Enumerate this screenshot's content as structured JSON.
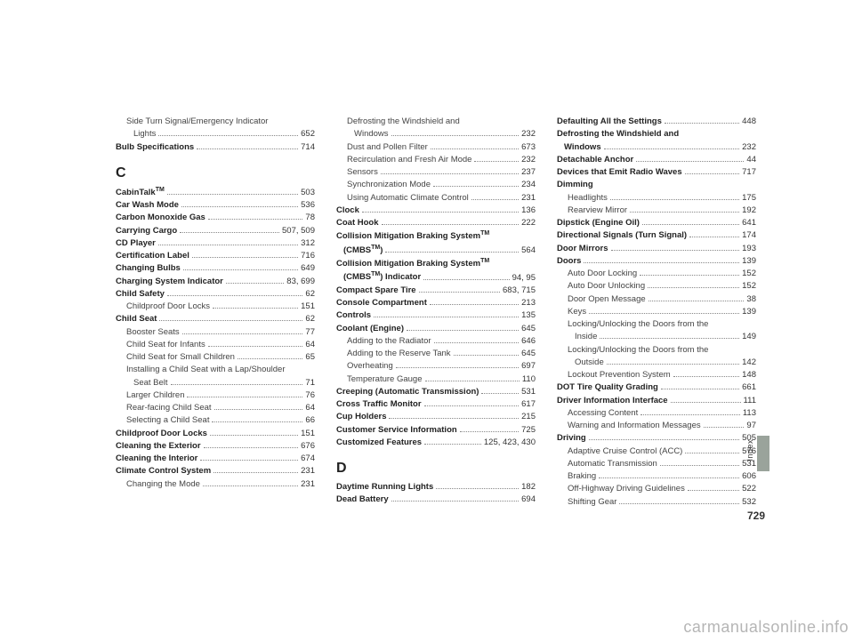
{
  "pageNumber": "729",
  "sideLabel": "Index",
  "watermark": "carmanualsonline.info",
  "columns": [
    {
      "entries": [
        {
          "label": "Side Turn Signal/Emergency Indicator",
          "pg": "",
          "type": "sub",
          "nodots": true
        },
        {
          "label": "Lights",
          "pg": "652",
          "type": "cont"
        },
        {
          "label": "Bulb Specifications",
          "pg": "714",
          "type": "bold"
        },
        {
          "label": "C",
          "type": "letter"
        },
        {
          "label": "CabinTalk",
          "tm": "TM",
          "pg": "503",
          "type": "bold"
        },
        {
          "label": "Car Wash Mode",
          "pg": "536",
          "type": "bold"
        },
        {
          "label": "Carbon Monoxide Gas",
          "pg": "78",
          "type": "bold"
        },
        {
          "label": "Carrying Cargo",
          "pg": "507, 509",
          "type": "bold"
        },
        {
          "label": "CD Player",
          "pg": "312",
          "type": "bold"
        },
        {
          "label": "Certification Label",
          "pg": "716",
          "type": "bold"
        },
        {
          "label": "Changing Bulbs",
          "pg": "649",
          "type": "bold"
        },
        {
          "label": "Charging System Indicator",
          "pg": "83, 699",
          "type": "bold"
        },
        {
          "label": "Child Safety",
          "pg": "62",
          "type": "bold"
        },
        {
          "label": "Childproof Door Locks",
          "pg": "151",
          "type": "sub"
        },
        {
          "label": "Child Seat",
          "pg": "62",
          "type": "bold"
        },
        {
          "label": "Booster Seats",
          "pg": "77",
          "type": "sub"
        },
        {
          "label": "Child Seat for Infants",
          "pg": "64",
          "type": "sub"
        },
        {
          "label": "Child Seat for Small Children",
          "pg": "65",
          "type": "sub"
        },
        {
          "label": "Installing a Child Seat with a Lap/Shoulder",
          "pg": "",
          "type": "sub",
          "nodots": true
        },
        {
          "label": "Seat Belt",
          "pg": "71",
          "type": "cont"
        },
        {
          "label": "Larger Children",
          "pg": "76",
          "type": "sub"
        },
        {
          "label": "Rear-facing Child Seat",
          "pg": "64",
          "type": "sub"
        },
        {
          "label": "Selecting a Child Seat",
          "pg": "66",
          "type": "sub"
        },
        {
          "label": "Childproof Door Locks",
          "pg": "151",
          "type": "bold"
        },
        {
          "label": "Cleaning the Exterior",
          "pg": "676",
          "type": "bold"
        },
        {
          "label": "Cleaning the Interior",
          "pg": "674",
          "type": "bold"
        },
        {
          "label": "Climate Control System",
          "pg": "231",
          "type": "bold"
        },
        {
          "label": "Changing the Mode",
          "pg": "231",
          "type": "sub"
        }
      ]
    },
    {
      "entries": [
        {
          "label": "Defrosting the Windshield and",
          "pg": "",
          "type": "sub",
          "nodots": true
        },
        {
          "label": "Windows",
          "pg": "232",
          "type": "cont"
        },
        {
          "label": "Dust and Pollen Filter",
          "pg": "673",
          "type": "sub"
        },
        {
          "label": "Recirculation and Fresh Air Mode",
          "pg": "232",
          "type": "sub"
        },
        {
          "label": "Sensors",
          "pg": "237",
          "type": "sub"
        },
        {
          "label": "Synchronization Mode",
          "pg": "234",
          "type": "sub"
        },
        {
          "label": "Using Automatic Climate Control",
          "pg": "231",
          "type": "sub"
        },
        {
          "label": "Clock",
          "pg": "136",
          "type": "bold"
        },
        {
          "label": "Coat Hook",
          "pg": "222",
          "type": "bold"
        },
        {
          "label": "Collision Mitigation Braking System",
          "tm": "TM",
          "pg": "",
          "type": "bold",
          "nodots": true
        },
        {
          "label": "(CMBS",
          "tm": "TM",
          "suffix": ")",
          "pg": "564",
          "type": "boldcont"
        },
        {
          "label": "Collision Mitigation Braking System",
          "tm": "TM",
          "pg": "",
          "type": "bold",
          "nodots": true
        },
        {
          "label": "(CMBS",
          "tm": "TM",
          "suffix": ") Indicator",
          "pg": "94, 95",
          "type": "boldcont"
        },
        {
          "label": "Compact Spare Tire",
          "pg": "683, 715",
          "type": "bold"
        },
        {
          "label": "Console Compartment",
          "pg": "213",
          "type": "bold"
        },
        {
          "label": "Controls",
          "pg": "135",
          "type": "bold"
        },
        {
          "label": "Coolant (Engine)",
          "pg": "645",
          "type": "bold"
        },
        {
          "label": "Adding to the Radiator",
          "pg": "646",
          "type": "sub"
        },
        {
          "label": "Adding to the Reserve Tank",
          "pg": "645",
          "type": "sub"
        },
        {
          "label": "Overheating",
          "pg": "697",
          "type": "sub"
        },
        {
          "label": "Temperature Gauge",
          "pg": "110",
          "type": "sub"
        },
        {
          "label": "Creeping (Automatic Transmission)",
          "pg": "531",
          "type": "bold"
        },
        {
          "label": "Cross Traffic Monitor",
          "pg": "617",
          "type": "bold"
        },
        {
          "label": "Cup Holders",
          "pg": "215",
          "type": "bold"
        },
        {
          "label": "Customer Service Information",
          "pg": "725",
          "type": "bold"
        },
        {
          "label": "Customized Features",
          "pg": "125, 423, 430",
          "type": "bold"
        },
        {
          "label": "D",
          "type": "letter"
        },
        {
          "label": "Daytime Running Lights",
          "pg": "182",
          "type": "bold"
        },
        {
          "label": "Dead Battery",
          "pg": "694",
          "type": "bold"
        }
      ]
    },
    {
      "entries": [
        {
          "label": "Defaulting All the Settings",
          "pg": "448",
          "type": "bold"
        },
        {
          "label": "Defrosting the Windshield and",
          "pg": "",
          "type": "bold",
          "nodots": true
        },
        {
          "label": "Windows",
          "pg": "232",
          "type": "boldcont"
        },
        {
          "label": "Detachable Anchor",
          "pg": "44",
          "type": "bold"
        },
        {
          "label": "Devices that Emit Radio Waves",
          "pg": "717",
          "type": "bold"
        },
        {
          "label": "Dimming",
          "pg": "",
          "type": "bold",
          "nodots": true
        },
        {
          "label": "Headlights",
          "pg": "175",
          "type": "sub"
        },
        {
          "label": "Rearview Mirror",
          "pg": "192",
          "type": "sub"
        },
        {
          "label": "Dipstick (Engine Oil)",
          "pg": "641",
          "type": "bold"
        },
        {
          "label": "Directional Signals (Turn Signal)",
          "pg": "174",
          "type": "bold"
        },
        {
          "label": "Door Mirrors",
          "pg": "193",
          "type": "bold"
        },
        {
          "label": "Doors",
          "pg": "139",
          "type": "bold"
        },
        {
          "label": "Auto Door Locking",
          "pg": "152",
          "type": "sub"
        },
        {
          "label": "Auto Door Unlocking",
          "pg": "152",
          "type": "sub"
        },
        {
          "label": "Door Open Message",
          "pg": "38",
          "type": "sub"
        },
        {
          "label": "Keys",
          "pg": "139",
          "type": "sub"
        },
        {
          "label": "Locking/Unlocking the Doors from the",
          "pg": "",
          "type": "sub",
          "nodots": true
        },
        {
          "label": "Inside",
          "pg": "149",
          "type": "cont"
        },
        {
          "label": "Locking/Unlocking the Doors from the",
          "pg": "",
          "type": "sub",
          "nodots": true
        },
        {
          "label": "Outside",
          "pg": "142",
          "type": "cont"
        },
        {
          "label": "Lockout Prevention System",
          "pg": "148",
          "type": "sub"
        },
        {
          "label": "DOT Tire Quality Grading",
          "pg": "661",
          "type": "bold"
        },
        {
          "label": "Driver Information Interface",
          "pg": "111",
          "type": "bold"
        },
        {
          "label": "Accessing Content",
          "pg": "113",
          "type": "sub"
        },
        {
          "label": "Warning and Information Messages",
          "pg": "97",
          "type": "sub"
        },
        {
          "label": "Driving",
          "pg": "505",
          "type": "bold"
        },
        {
          "label": "Adaptive Cruise Control (ACC)",
          "pg": "576",
          "type": "sub"
        },
        {
          "label": "Automatic Transmission",
          "pg": "531",
          "type": "sub"
        },
        {
          "label": "Braking",
          "pg": "606",
          "type": "sub"
        },
        {
          "label": "Off-Highway Driving Guidelines",
          "pg": "522",
          "type": "sub"
        },
        {
          "label": "Shifting Gear",
          "pg": "532",
          "type": "sub"
        }
      ]
    }
  ]
}
